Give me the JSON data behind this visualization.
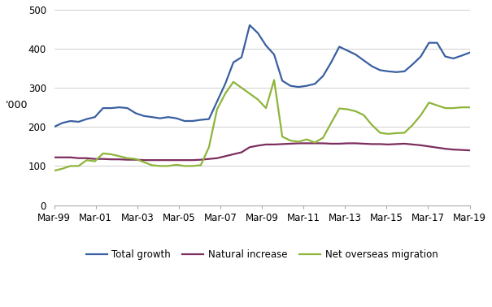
{
  "ylabel": "'000",
  "ylim": [
    0,
    510
  ],
  "yticks": [
    0,
    100,
    200,
    300,
    400,
    500
  ],
  "xtick_labels": [
    "Mar-99",
    "Mar-01",
    "Mar-03",
    "Mar-05",
    "Mar-07",
    "Mar-09",
    "Mar-11",
    "Mar-13",
    "Mar-15",
    "Mar-17",
    "Mar-19"
  ],
  "total_growth": [
    200,
    210,
    215,
    213,
    220,
    225,
    248,
    248,
    250,
    248,
    235,
    228,
    225,
    222,
    225,
    222,
    215,
    215,
    218,
    220,
    265,
    310,
    365,
    378,
    460,
    440,
    408,
    385,
    318,
    305,
    302,
    305,
    310,
    330,
    365,
    405,
    395,
    385,
    370,
    355,
    345,
    342,
    340,
    342,
    360,
    380,
    415,
    415,
    380,
    375,
    382,
    390
  ],
  "natural_increase": [
    122,
    122,
    122,
    120,
    120,
    118,
    118,
    117,
    117,
    116,
    116,
    115,
    115,
    115,
    115,
    115,
    115,
    115,
    116,
    118,
    120,
    125,
    130,
    135,
    148,
    152,
    155,
    155,
    156,
    157,
    158,
    158,
    158,
    158,
    157,
    157,
    158,
    158,
    157,
    156,
    156,
    155,
    156,
    157,
    155,
    153,
    150,
    147,
    144,
    142,
    141,
    140
  ],
  "net_overseas_migration": [
    88,
    93,
    100,
    100,
    115,
    112,
    132,
    130,
    125,
    120,
    118,
    110,
    102,
    100,
    100,
    103,
    100,
    100,
    102,
    148,
    245,
    285,
    315,
    300,
    285,
    270,
    248,
    320,
    175,
    165,
    162,
    168,
    160,
    172,
    210,
    247,
    245,
    240,
    230,
    205,
    185,
    182,
    184,
    185,
    205,
    230,
    262,
    255,
    248,
    248,
    250,
    250
  ],
  "n_points": 52,
  "total_color": "#3a5fa0",
  "natural_color": "#7b2d5e",
  "nom_color": "#8db53a",
  "background_color": "#ffffff",
  "grid_color": "#c8c8c8",
  "legend_fontsize": 8.5,
  "tick_fontsize": 8.5
}
